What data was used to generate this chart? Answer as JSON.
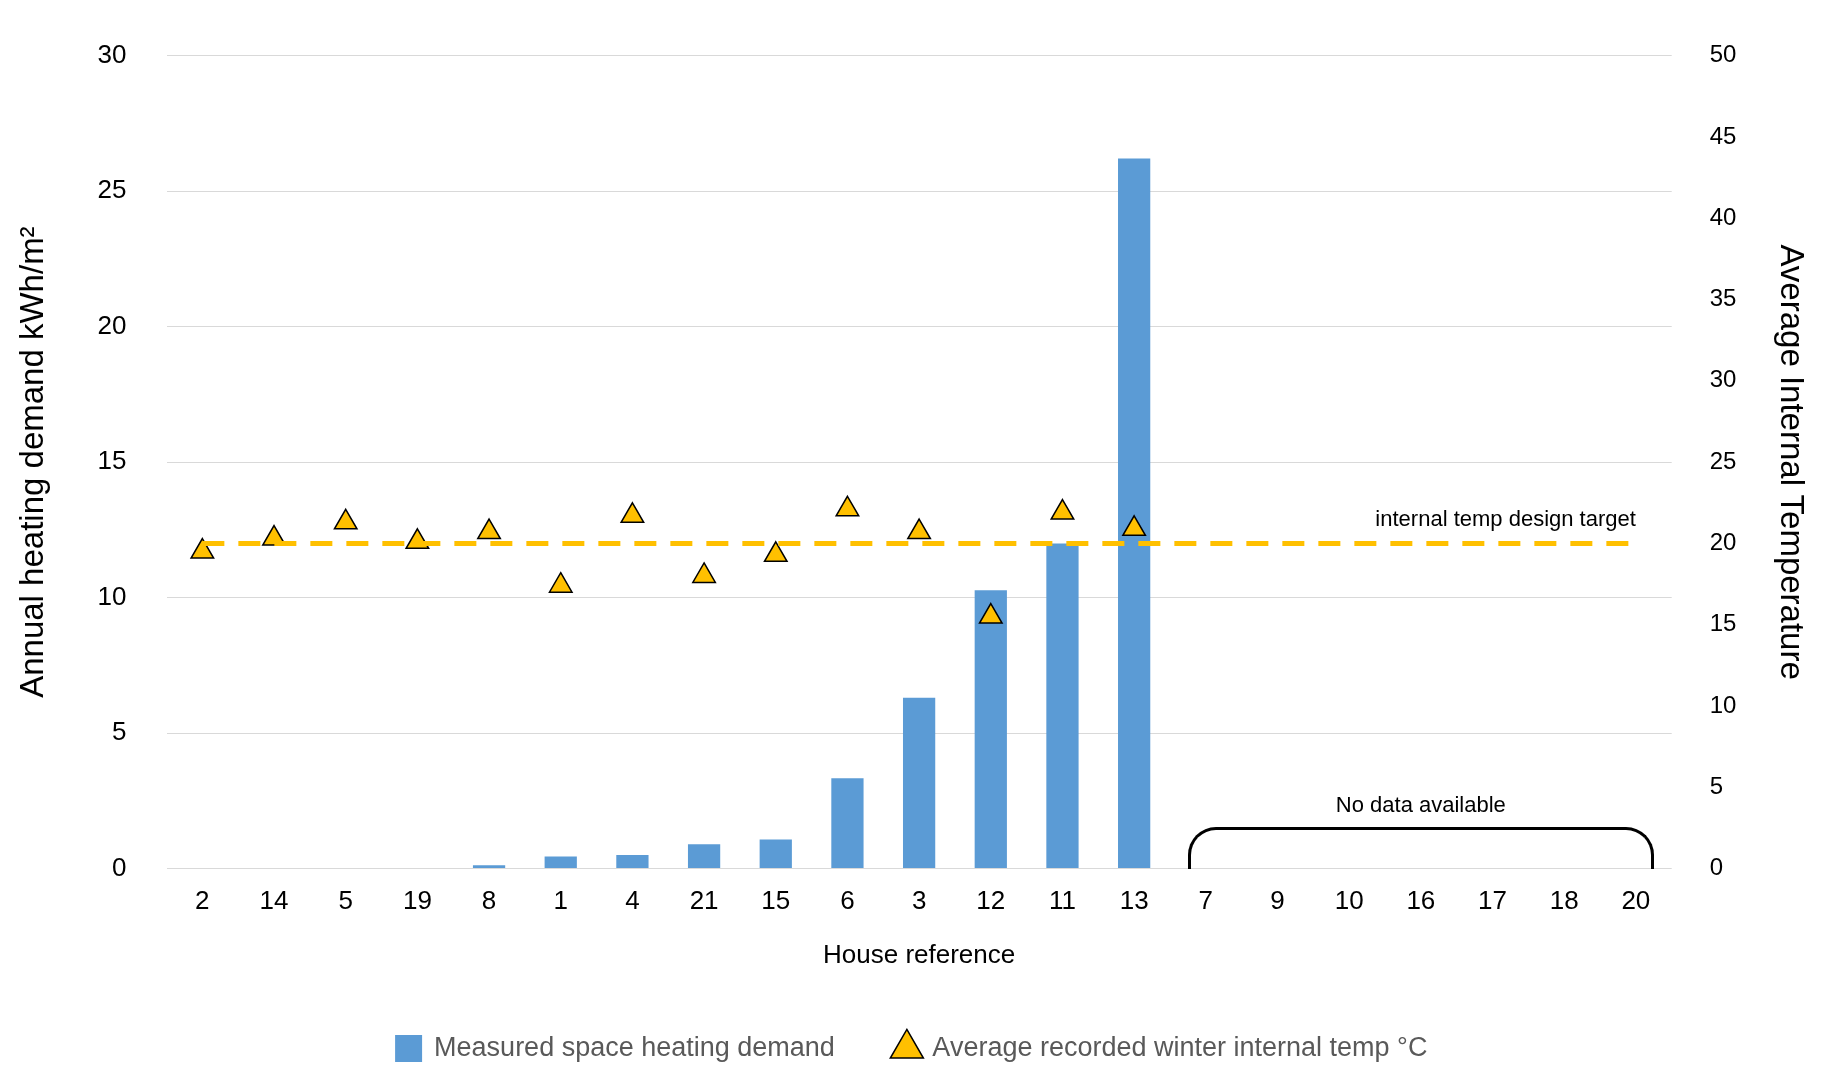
{
  "chart_data": {
    "type": "bar",
    "xlabel": "House reference",
    "ylabel": "Annual heating demand kWh/m²",
    "y2label": "Average Internal Temperature",
    "categories": [
      "2",
      "14",
      "5",
      "19",
      "8",
      "1",
      "4",
      "21",
      "15",
      "6",
      "3",
      "12",
      "11",
      "13",
      "7",
      "9",
      "10",
      "16",
      "17",
      "18",
      "20"
    ],
    "series": [
      {
        "name": "Measured space heating demand",
        "color": "#5b9bd5",
        "values": [
          0,
          0,
          0,
          0,
          0.12,
          0.45,
          0.5,
          0.9,
          1.07,
          3.33,
          6.3,
          10.27,
          12.0,
          26.2,
          null,
          null,
          null,
          null,
          null,
          null,
          null
        ]
      },
      {
        "name": "Average recorded winter internal temp °C",
        "type": "scatter",
        "axis": "y2",
        "color": "#ffc000",
        "marker": "triangle",
        "x": [
          "2",
          "14",
          "5",
          "19",
          "8",
          "1",
          "4",
          "21",
          "15",
          "6",
          "3",
          "12",
          "11",
          "13"
        ],
        "values": [
          19.5,
          20.3,
          21.3,
          20.1,
          20.7,
          17.4,
          21.7,
          18.0,
          19.3,
          22.1,
          20.7,
          15.5,
          21.9,
          20.9
        ]
      }
    ],
    "ylim": [
      0,
      30
    ],
    "yticks": [
      0,
      5,
      10,
      15,
      20,
      25,
      30
    ],
    "y2lim": [
      0,
      50
    ],
    "y2ticks": [
      0,
      5,
      10,
      15,
      20,
      25,
      30,
      35,
      40,
      45,
      50
    ],
    "ref_lines": [
      {
        "axis": "y2",
        "value": 20,
        "label": "internal temp design target",
        "color": "#ffc000",
        "line_style": "dashed"
      }
    ],
    "annotations": [
      "No data available"
    ],
    "grid": "y",
    "legend": "bottom"
  }
}
